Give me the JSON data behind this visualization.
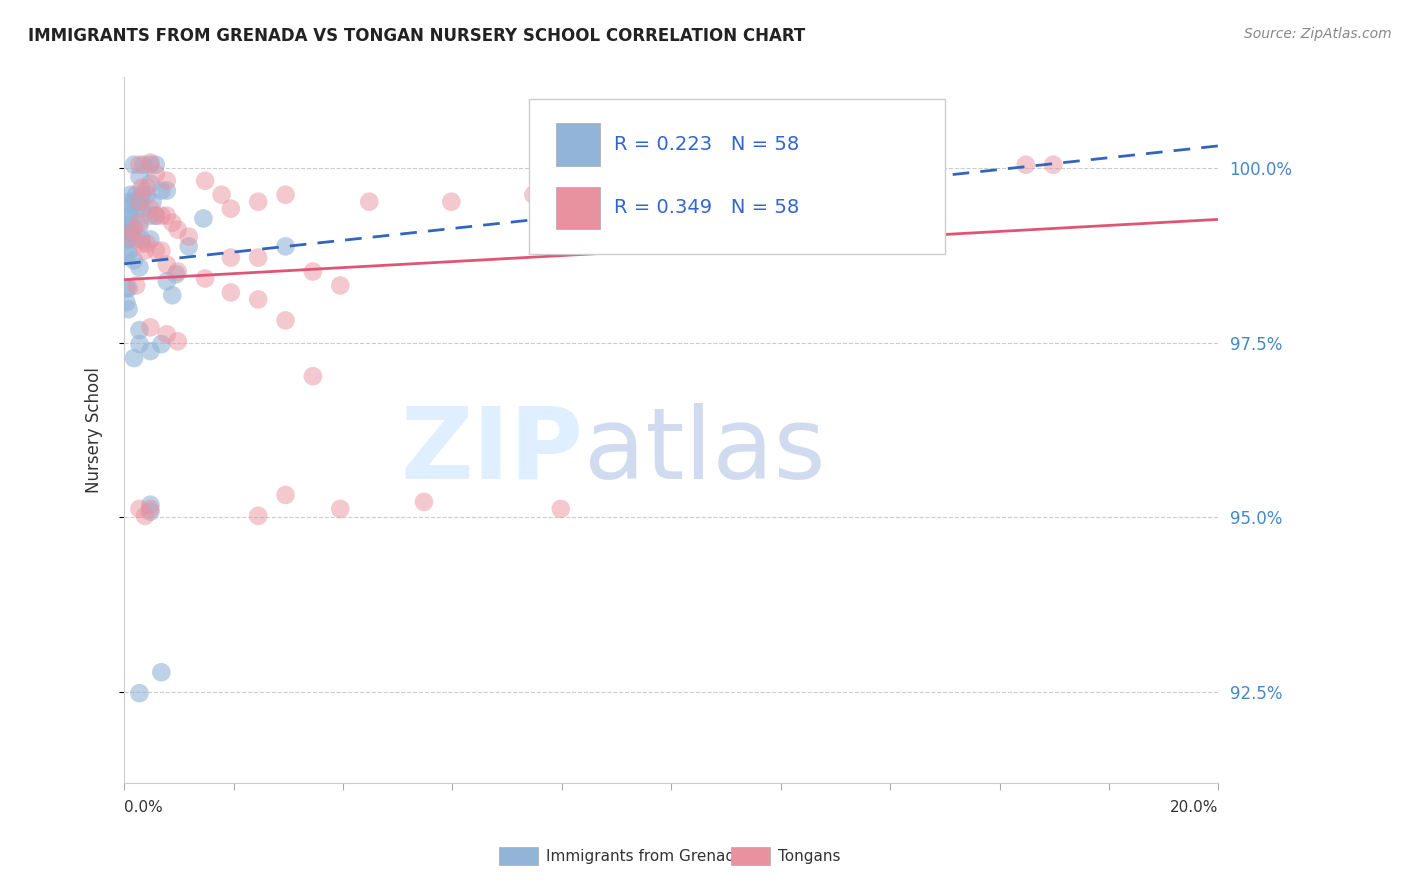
{
  "title": "IMMIGRANTS FROM GRENADA VS TONGAN NURSERY SCHOOL CORRELATION CHART",
  "source": "Source: ZipAtlas.com",
  "ylabel": "Nursery School",
  "ytick_labels": [
    "92.5%",
    "95.0%",
    "97.5%",
    "100.0%"
  ],
  "ytick_values": [
    92.5,
    95.0,
    97.5,
    100.0
  ],
  "xlim": [
    0.0,
    20.0
  ],
  "ylim": [
    91.2,
    101.3
  ],
  "legend_r_blue": "R = 0.223",
  "legend_n_blue": "N = 58",
  "legend_r_pink": "R = 0.349",
  "legend_n_pink": "N = 58",
  "legend_labels": [
    "Immigrants from Grenada",
    "Tongans"
  ],
  "blue_color": "#92b4d8",
  "pink_color": "#e8929f",
  "blue_line_color": "#3366bb",
  "pink_line_color": "#e05575",
  "watermark_zip": "ZIP",
  "watermark_atlas": "atlas",
  "blue_dots": [
    [
      0.18,
      100.05
    ],
    [
      0.35,
      100.05
    ],
    [
      0.48,
      100.05
    ],
    [
      0.58,
      100.05
    ],
    [
      0.28,
      99.88
    ],
    [
      0.48,
      99.78
    ],
    [
      0.68,
      99.68
    ],
    [
      0.78,
      99.68
    ],
    [
      0.12,
      99.62
    ],
    [
      0.22,
      99.62
    ],
    [
      0.32,
      99.62
    ],
    [
      0.42,
      99.62
    ],
    [
      0.52,
      99.52
    ],
    [
      0.28,
      99.52
    ],
    [
      0.18,
      99.52
    ],
    [
      0.08,
      99.52
    ],
    [
      0.12,
      99.42
    ],
    [
      0.22,
      99.42
    ],
    [
      0.32,
      99.42
    ],
    [
      0.48,
      99.32
    ],
    [
      0.58,
      99.32
    ],
    [
      0.08,
      99.32
    ],
    [
      0.04,
      99.28
    ],
    [
      0.04,
      99.18
    ],
    [
      0.08,
      99.18
    ],
    [
      0.18,
      99.18
    ],
    [
      0.28,
      99.18
    ],
    [
      0.12,
      99.08
    ],
    [
      0.04,
      99.08
    ],
    [
      0.04,
      98.98
    ],
    [
      0.08,
      98.98
    ],
    [
      0.18,
      98.98
    ],
    [
      0.32,
      98.98
    ],
    [
      0.48,
      98.98
    ],
    [
      1.45,
      99.28
    ],
    [
      1.18,
      98.88
    ],
    [
      0.04,
      98.78
    ],
    [
      0.08,
      98.78
    ],
    [
      0.18,
      98.68
    ],
    [
      0.28,
      98.58
    ],
    [
      0.95,
      98.48
    ],
    [
      0.78,
      98.38
    ],
    [
      0.04,
      98.28
    ],
    [
      0.08,
      98.28
    ],
    [
      0.88,
      98.18
    ],
    [
      0.04,
      98.08
    ],
    [
      0.08,
      97.98
    ],
    [
      0.28,
      97.68
    ],
    [
      0.68,
      97.48
    ],
    [
      0.28,
      97.48
    ],
    [
      0.48,
      97.38
    ],
    [
      0.18,
      97.28
    ],
    [
      0.48,
      95.18
    ],
    [
      0.48,
      95.08
    ],
    [
      0.68,
      92.78
    ],
    [
      0.28,
      92.48
    ],
    [
      2.95,
      98.88
    ],
    [
      7.8,
      99.68
    ]
  ],
  "pink_dots": [
    [
      0.28,
      100.05
    ],
    [
      0.48,
      100.08
    ],
    [
      0.58,
      99.92
    ],
    [
      0.78,
      99.82
    ],
    [
      0.32,
      99.72
    ],
    [
      0.42,
      99.72
    ],
    [
      1.48,
      99.82
    ],
    [
      2.95,
      99.62
    ],
    [
      4.48,
      99.52
    ],
    [
      5.98,
      99.52
    ],
    [
      7.48,
      99.62
    ],
    [
      9.48,
      99.72
    ],
    [
      10.48,
      99.42
    ],
    [
      11.98,
      99.82
    ],
    [
      16.48,
      100.05
    ],
    [
      16.98,
      100.05
    ],
    [
      0.28,
      99.52
    ],
    [
      0.48,
      99.42
    ],
    [
      0.58,
      99.32
    ],
    [
      0.68,
      99.32
    ],
    [
      0.78,
      99.32
    ],
    [
      0.88,
      99.22
    ],
    [
      0.98,
      99.12
    ],
    [
      1.18,
      99.02
    ],
    [
      0.32,
      98.92
    ],
    [
      0.42,
      98.92
    ],
    [
      0.58,
      98.82
    ],
    [
      0.68,
      98.82
    ],
    [
      1.95,
      98.72
    ],
    [
      2.45,
      98.72
    ],
    [
      3.45,
      98.52
    ],
    [
      3.95,
      98.32
    ],
    [
      1.95,
      99.42
    ],
    [
      2.45,
      99.52
    ],
    [
      1.78,
      99.62
    ],
    [
      0.78,
      98.62
    ],
    [
      0.98,
      98.52
    ],
    [
      1.48,
      98.42
    ],
    [
      1.95,
      98.22
    ],
    [
      2.45,
      98.12
    ],
    [
      2.95,
      97.82
    ],
    [
      0.48,
      97.72
    ],
    [
      0.78,
      97.62
    ],
    [
      0.98,
      97.52
    ],
    [
      3.45,
      97.02
    ],
    [
      2.45,
      95.02
    ],
    [
      3.95,
      95.12
    ],
    [
      5.48,
      95.22
    ],
    [
      7.98,
      95.12
    ],
    [
      2.95,
      95.32
    ],
    [
      0.28,
      95.12
    ],
    [
      0.48,
      95.12
    ],
    [
      0.38,
      95.02
    ],
    [
      0.28,
      99.22
    ],
    [
      0.18,
      99.12
    ],
    [
      0.12,
      99.02
    ],
    [
      0.38,
      98.82
    ],
    [
      0.22,
      98.32
    ]
  ]
}
